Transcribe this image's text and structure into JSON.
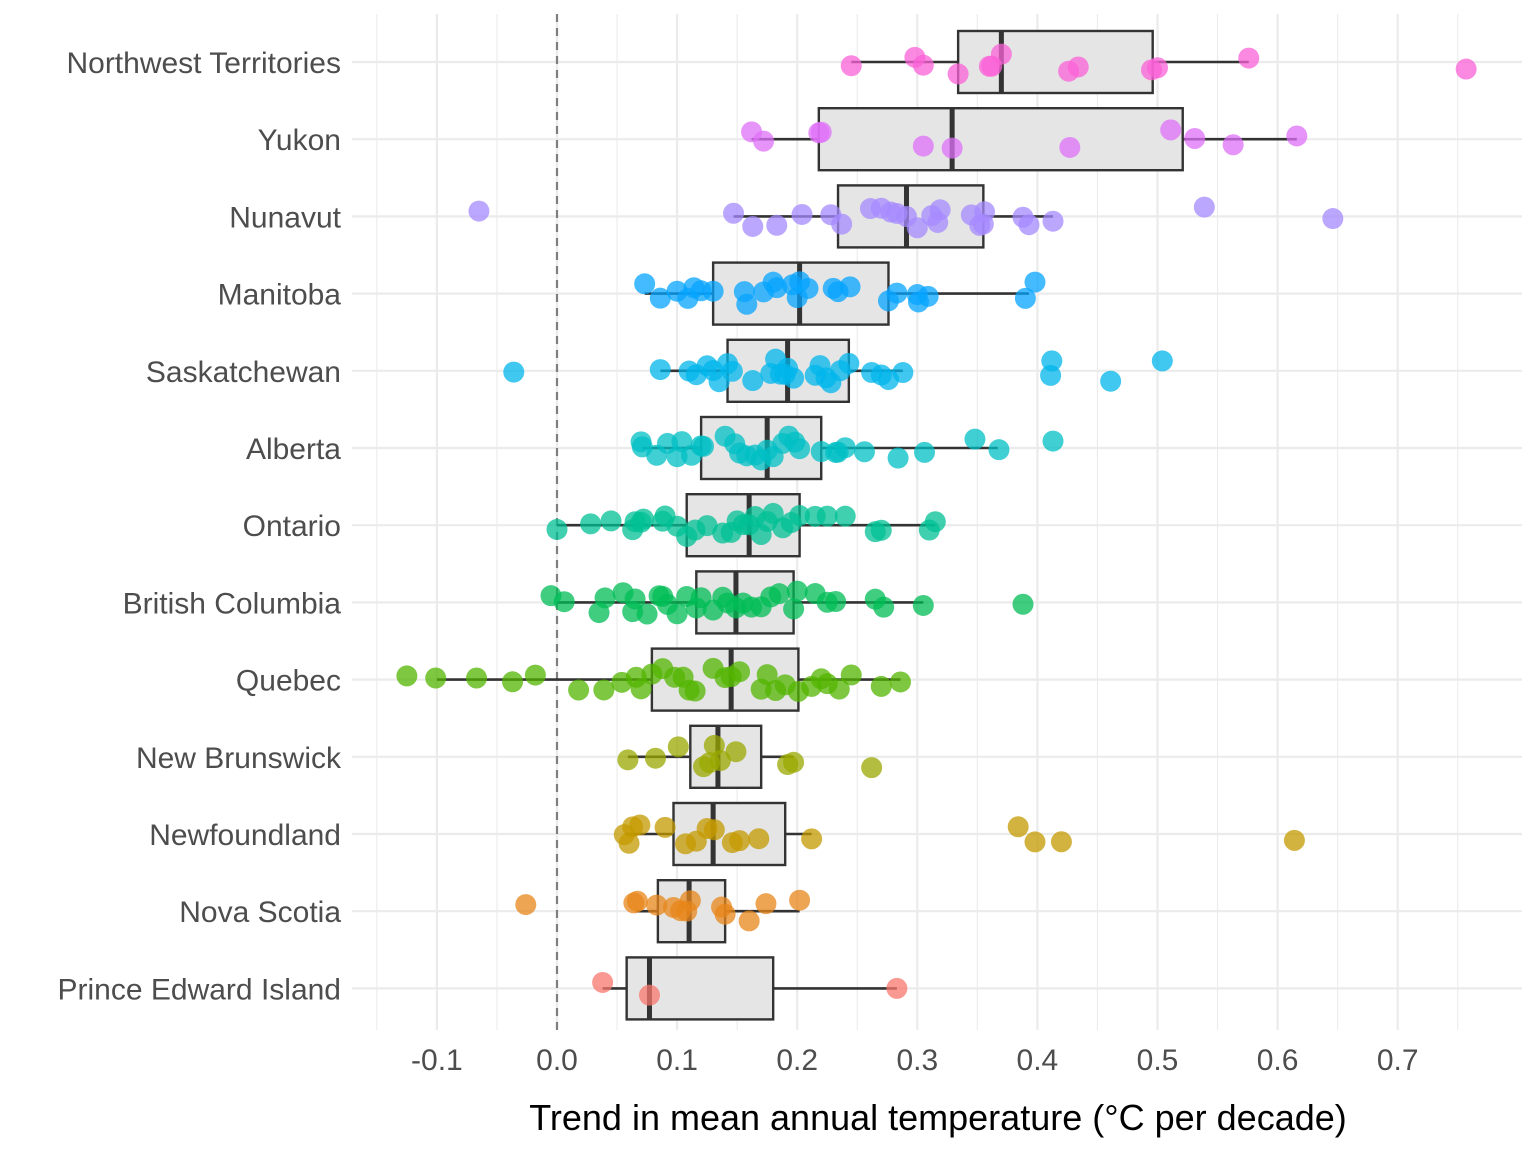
{
  "chart_data": {
    "type": "boxplot",
    "title": "",
    "xlabel": "Trend in mean annual temperature (°C per decade)",
    "ylabel": "",
    "xlim": [
      -0.15,
      0.8
    ],
    "x_ticks": [
      "-0.1",
      "0.0",
      "0.1",
      "0.2",
      "0.3",
      "0.4",
      "0.5",
      "0.6",
      "0.7"
    ],
    "reference_line": {
      "x": 0.0,
      "style": "dashed"
    },
    "grid": true,
    "legend": "none",
    "categories": [
      {
        "name": "Northwest Territories",
        "color": "#F8766D",
        "box": {
          "min": 0.245,
          "q1": 0.334,
          "median": 0.37,
          "q3": 0.496,
          "max": 0.576
        },
        "points": [
          0.245,
          0.298,
          0.305,
          0.334,
          0.36,
          0.362,
          0.37,
          0.426,
          0.434,
          0.495,
          0.5,
          0.576,
          0.757
        ]
      },
      {
        "name": "Yukon",
        "color": "#F8766D",
        "box": {
          "min": 0.162,
          "q1": 0.218,
          "median": 0.329,
          "q3": 0.521,
          "max": 0.616
        },
        "points": [
          0.162,
          0.172,
          0.218,
          0.22,
          0.305,
          0.329,
          0.427,
          0.511,
          0.531,
          0.563,
          0.616
        ]
      },
      {
        "name": "Nunavut",
        "color": "#F8766D",
        "box": {
          "min": 0.147,
          "q1": 0.234,
          "median": 0.291,
          "q3": 0.355,
          "max": 0.413
        },
        "points": [
          -0.065,
          0.147,
          0.163,
          0.183,
          0.204,
          0.228,
          0.237,
          0.261,
          0.27,
          0.278,
          0.283,
          0.291,
          0.3,
          0.312,
          0.317,
          0.319,
          0.345,
          0.352,
          0.355,
          0.356,
          0.388,
          0.393,
          0.413,
          0.539,
          0.646
        ]
      },
      {
        "name": "Manitoba",
        "color": "#F8766D",
        "box": {
          "min": 0.073,
          "q1": 0.13,
          "median": 0.202,
          "q3": 0.276,
          "max": 0.393
        },
        "points": [
          0.073,
          0.086,
          0.1,
          0.109,
          0.114,
          0.12,
          0.13,
          0.156,
          0.158,
          0.172,
          0.18,
          0.183,
          0.196,
          0.2,
          0.202,
          0.209,
          0.23,
          0.234,
          0.244,
          0.276,
          0.283,
          0.3,
          0.301,
          0.309,
          0.39,
          0.398
        ]
      },
      {
        "name": "Saskatchewan",
        "color": "#F8766D",
        "box": {
          "min": 0.086,
          "q1": 0.142,
          "median": 0.192,
          "q3": 0.243,
          "max": 0.288
        },
        "points": [
          -0.036,
          0.086,
          0.11,
          0.116,
          0.125,
          0.13,
          0.135,
          0.142,
          0.146,
          0.163,
          0.178,
          0.182,
          0.186,
          0.19,
          0.192,
          0.197,
          0.215,
          0.219,
          0.224,
          0.228,
          0.236,
          0.243,
          0.262,
          0.27,
          0.276,
          0.288,
          0.411,
          0.412,
          0.461,
          0.504
        ]
      },
      {
        "name": "Alberta",
        "color": "#F8766D",
        "box": {
          "min": 0.071,
          "q1": 0.12,
          "median": 0.175,
          "q3": 0.22,
          "max": 0.367
        },
        "points": [
          0.07,
          0.071,
          0.083,
          0.092,
          0.1,
          0.104,
          0.112,
          0.12,
          0.122,
          0.14,
          0.148,
          0.152,
          0.158,
          0.165,
          0.17,
          0.175,
          0.18,
          0.188,
          0.193,
          0.198,
          0.202,
          0.22,
          0.232,
          0.234,
          0.24,
          0.256,
          0.284,
          0.306,
          0.348,
          0.368,
          0.413
        ]
      },
      {
        "name": "Ontario",
        "color": "#F8766D",
        "box": {
          "min": 0.0,
          "q1": 0.108,
          "median": 0.16,
          "q3": 0.202,
          "max": 0.315
        },
        "points": [
          0.0,
          0.028,
          0.045,
          0.063,
          0.065,
          0.07,
          0.072,
          0.088,
          0.09,
          0.1,
          0.108,
          0.115,
          0.125,
          0.138,
          0.145,
          0.15,
          0.155,
          0.16,
          0.165,
          0.17,
          0.175,
          0.18,
          0.188,
          0.195,
          0.202,
          0.215,
          0.225,
          0.24,
          0.265,
          0.27,
          0.31,
          0.315
        ]
      },
      {
        "name": "British Columbia",
        "color": "#F8766D",
        "box": {
          "min": 0.0,
          "q1": 0.116,
          "median": 0.149,
          "q3": 0.197,
          "max": 0.305
        },
        "points": [
          -0.005,
          0.006,
          0.035,
          0.04,
          0.055,
          0.063,
          0.065,
          0.075,
          0.085,
          0.088,
          0.092,
          0.1,
          0.108,
          0.116,
          0.12,
          0.13,
          0.138,
          0.142,
          0.149,
          0.155,
          0.162,
          0.17,
          0.178,
          0.185,
          0.197,
          0.2,
          0.215,
          0.225,
          0.232,
          0.265,
          0.272,
          0.305,
          0.388
        ]
      },
      {
        "name": "Quebec",
        "color": "#F8766D",
        "box": {
          "min": -0.1,
          "q1": 0.079,
          "median": 0.145,
          "q3": 0.201,
          "max": 0.286
        },
        "points": [
          -0.125,
          -0.101,
          -0.067,
          -0.037,
          -0.018,
          0.018,
          0.039,
          0.054,
          0.066,
          0.07,
          0.079,
          0.088,
          0.098,
          0.105,
          0.11,
          0.115,
          0.13,
          0.14,
          0.145,
          0.152,
          0.17,
          0.175,
          0.182,
          0.19,
          0.201,
          0.212,
          0.22,
          0.225,
          0.235,
          0.245,
          0.27,
          0.286
        ]
      },
      {
        "name": "New Brunswick",
        "color": "#F8766D",
        "box": {
          "min": 0.059,
          "q1": 0.111,
          "median": 0.134,
          "q3": 0.17,
          "max": 0.197
        },
        "points": [
          0.059,
          0.082,
          0.101,
          0.122,
          0.127,
          0.131,
          0.136,
          0.149,
          0.192,
          0.197,
          0.262
        ]
      },
      {
        "name": "Newfoundland",
        "color": "#F8766D",
        "box": {
          "min": 0.057,
          "q1": 0.097,
          "median": 0.13,
          "q3": 0.19,
          "max": 0.212
        },
        "points": [
          0.056,
          0.06,
          0.063,
          0.069,
          0.09,
          0.107,
          0.116,
          0.125,
          0.131,
          0.146,
          0.152,
          0.168,
          0.212,
          0.384,
          0.398,
          0.42,
          0.614
        ]
      },
      {
        "name": "Nova Scotia",
        "color": "#F8766D",
        "box": {
          "min": 0.066,
          "q1": 0.084,
          "median": 0.11,
          "q3": 0.14,
          "max": 0.202
        },
        "points": [
          -0.026,
          0.064,
          0.067,
          0.083,
          0.097,
          0.103,
          0.108,
          0.111,
          0.137,
          0.14,
          0.16,
          0.174,
          0.202
        ]
      },
      {
        "name": "Prince Edward Island",
        "color": "#F8766D",
        "box": {
          "min": 0.038,
          "q1": 0.058,
          "median": 0.077,
          "q3": 0.18,
          "max": 0.283
        },
        "points": [
          0.038,
          0.077,
          0.283
        ]
      }
    ]
  },
  "style": {
    "point_colors": [
      "#F8766D",
      "#E7861A",
      "#C49A00",
      "#99A800",
      "#53B400",
      "#00BC56",
      "#00C094",
      "#00BFC4",
      "#00B6EB",
      "#06A4FF",
      "#A58AFF",
      "#DF70F8",
      "#FB61D7"
    ],
    "box_fill": "#E5E5E5",
    "box_stroke": "#333333",
    "grid_color": "#EBEBEB",
    "reference_line_color": "#7F7F7F",
    "text_color": "#4d4d4d"
  }
}
